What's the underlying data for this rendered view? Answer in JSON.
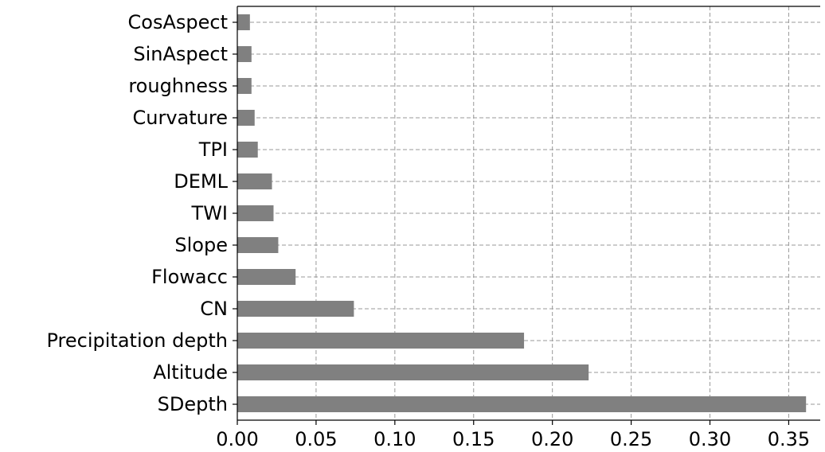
{
  "chart_data": {
    "type": "bar",
    "orientation": "horizontal",
    "title": "",
    "xlabel": "",
    "ylabel": "",
    "categories": [
      "CosAspect",
      "SinAspect",
      "roughness",
      "Curvature",
      "TPI",
      "DEML",
      "TWI",
      "Slope",
      "Flowacc",
      "CN",
      "Precipitation depth",
      "Altitude",
      "SDepth"
    ],
    "values": [
      0.008,
      0.009,
      0.009,
      0.011,
      0.013,
      0.022,
      0.023,
      0.026,
      0.037,
      0.074,
      0.182,
      0.223,
      0.361
    ],
    "x_ticks": [
      "0.00",
      "0.05",
      "0.10",
      "0.15",
      "0.20",
      "0.25",
      "0.30",
      "0.35"
    ],
    "xlim": [
      0,
      0.37
    ],
    "grid": true,
    "legend": "none",
    "bar_color": "#808080"
  }
}
